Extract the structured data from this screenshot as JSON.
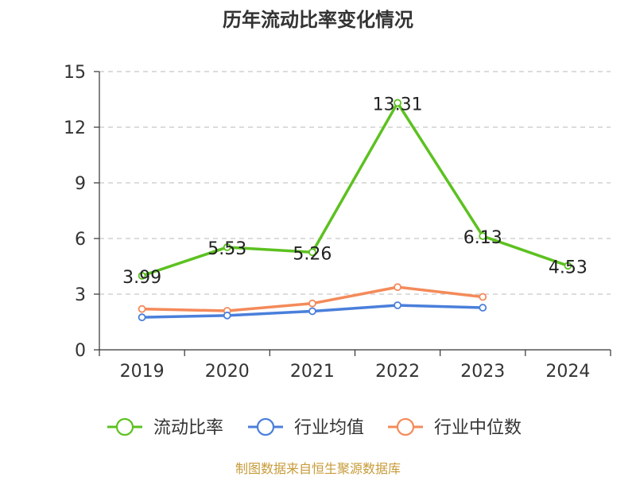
{
  "chart_data": {
    "type": "line",
    "title": "历年流动比率变化情况",
    "xlabel": "",
    "ylabel": "",
    "categories": [
      "2019",
      "2020",
      "2021",
      "2022",
      "2023",
      "2024"
    ],
    "ylim": [
      0,
      15
    ],
    "yticks": [
      0,
      3,
      6,
      9,
      12,
      15
    ],
    "grid": true,
    "legend_position": "bottom",
    "series": [
      {
        "name": "流动比率",
        "color": "#5cc120",
        "values": [
          3.99,
          5.53,
          5.26,
          13.31,
          6.13,
          4.53
        ],
        "labels": [
          "3.99",
          "5.53",
          "5.26",
          "13.31",
          "6.13",
          "4.53"
        ]
      },
      {
        "name": "行业均值",
        "color": "#4a7fdb",
        "values": [
          1.75,
          1.85,
          2.08,
          2.4,
          2.27,
          null
        ]
      },
      {
        "name": "行业中位数",
        "color": "#f48a5a",
        "values": [
          2.2,
          2.1,
          2.5,
          3.38,
          2.85,
          null
        ]
      }
    ]
  },
  "source_note": "制图数据来自恒生聚源数据库"
}
